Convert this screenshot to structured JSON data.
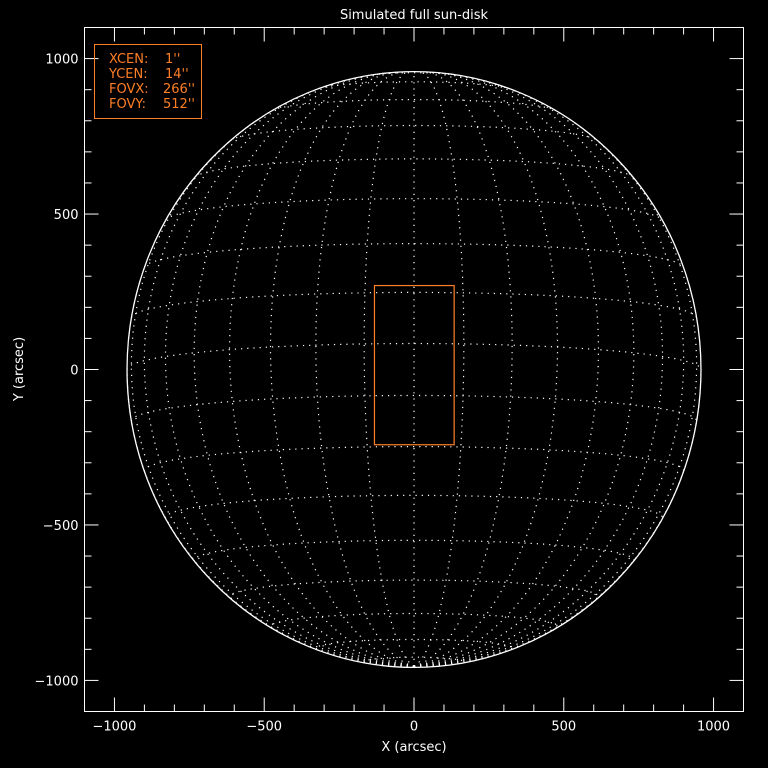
{
  "chart_data": {
    "type": "line",
    "title": "Simulated full sun-disk",
    "xlabel": "X (arcsec)",
    "ylabel": "Y (arcsec)",
    "xlim": [
      -1100,
      1100
    ],
    "ylim": [
      -1100,
      1100
    ],
    "xticks": [
      -1000,
      -500,
      0,
      500,
      1000
    ],
    "yticks": [
      -1000,
      -500,
      0,
      500,
      1000
    ],
    "xtick_labels": [
      "−1000",
      "−500",
      "0",
      "500",
      "1000"
    ],
    "ytick_labels": [
      "−1000",
      "−500",
      "0",
      "500",
      "1000"
    ],
    "minor_tick_step": 100,
    "disk_radius_arcsec": 958,
    "grid_spacing_deg": 10,
    "field_of_view": {
      "xcen": 1,
      "ycen": 14,
      "fovx": 266,
      "fovy": 512
    },
    "legend": {
      "placement": "top-left",
      "rows": [
        {
          "label": "XCEN:",
          "value": "1''"
        },
        {
          "label": "YCEN:",
          "value": "14''"
        },
        {
          "label": "FOVX:",
          "value": "266''"
        },
        {
          "label": "FOVY:",
          "value": "512''"
        }
      ]
    },
    "colors": {
      "background": "#000000",
      "axes": "#ffffff",
      "grid": "#ffffff",
      "fov_box": "#ff7f27"
    }
  }
}
